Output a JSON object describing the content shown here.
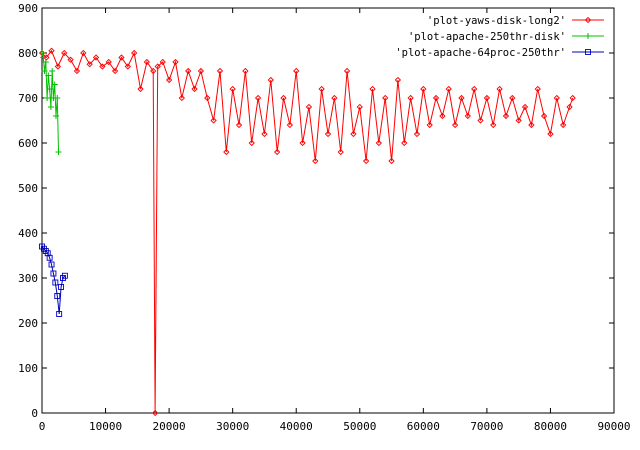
{
  "chart_data": {
    "type": "line",
    "title": "",
    "xlabel": "",
    "ylabel": "",
    "xlim": [
      0,
      90000
    ],
    "ylim": [
      0,
      900
    ],
    "x_ticks": [
      0,
      10000,
      20000,
      30000,
      40000,
      50000,
      60000,
      70000,
      80000,
      90000
    ],
    "y_ticks": [
      0,
      100,
      200,
      300,
      400,
      500,
      600,
      700,
      800,
      900
    ],
    "grid": false,
    "legend_position": "top-right",
    "series": [
      {
        "name": "'plot-yaws-disk-long2'",
        "color": "#ff0000",
        "marker": "diamond",
        "x": [
          0,
          700,
          1500,
          2500,
          3500,
          4500,
          5500,
          6500,
          7500,
          8500,
          9500,
          10500,
          11500,
          12500,
          13500,
          14500,
          15500,
          16500,
          17500,
          17800,
          18200,
          19000,
          20000,
          21000,
          22000,
          23000,
          24000,
          25000,
          26000,
          27000,
          28000,
          29000,
          30000,
          31000,
          32000,
          33000,
          34000,
          35000,
          36000,
          37000,
          38000,
          39000,
          40000,
          41000,
          42000,
          43000,
          44000,
          45000,
          46000,
          47000,
          48000,
          49000,
          50000,
          51000,
          52000,
          53000,
          54000,
          55000,
          56000,
          57000,
          58000,
          59000,
          60000,
          61000,
          62000,
          63000,
          64000,
          65000,
          66000,
          67000,
          68000,
          69000,
          70000,
          71000,
          72000,
          73000,
          74000,
          75000,
          76000,
          77000,
          78000,
          79000,
          80000,
          81000,
          82000,
          83000,
          83500
        ],
        "y": [
          800,
          790,
          805,
          770,
          800,
          785,
          760,
          800,
          775,
          790,
          770,
          780,
          760,
          790,
          770,
          800,
          720,
          780,
          760,
          0,
          770,
          780,
          740,
          780,
          700,
          760,
          720,
          760,
          700,
          650,
          760,
          580,
          720,
          640,
          760,
          600,
          700,
          620,
          740,
          580,
          700,
          640,
          760,
          600,
          680,
          560,
          720,
          620,
          700,
          580,
          760,
          620,
          680,
          560,
          720,
          600,
          700,
          560,
          740,
          600,
          700,
          620,
          720,
          640,
          700,
          660,
          720,
          640,
          700,
          660,
          720,
          650,
          700,
          640,
          720,
          660,
          700,
          650,
          680,
          640,
          720,
          660,
          620,
          700,
          640,
          680,
          700
        ]
      },
      {
        "name": "'plot-apache-250thr-disk'",
        "color": "#00c000",
        "marker": "plus",
        "x": [
          0,
          200,
          400,
          600,
          800,
          1000,
          1200,
          1400,
          1600,
          1800,
          2000,
          2200,
          2400,
          2600
        ],
        "y": [
          800,
          790,
          760,
          780,
          700,
          750,
          720,
          680,
          760,
          700,
          730,
          660,
          700,
          580
        ]
      },
      {
        "name": "'plot-apache-64proc-250thr'",
        "color": "#0000c0",
        "marker": "square",
        "x": [
          0,
          300,
          600,
          900,
          1200,
          1500,
          1800,
          2100,
          2400,
          2700,
          3000,
          3300,
          3600
        ],
        "y": [
          370,
          365,
          360,
          355,
          345,
          330,
          310,
          290,
          260,
          220,
          280,
          300,
          305
        ]
      }
    ]
  }
}
